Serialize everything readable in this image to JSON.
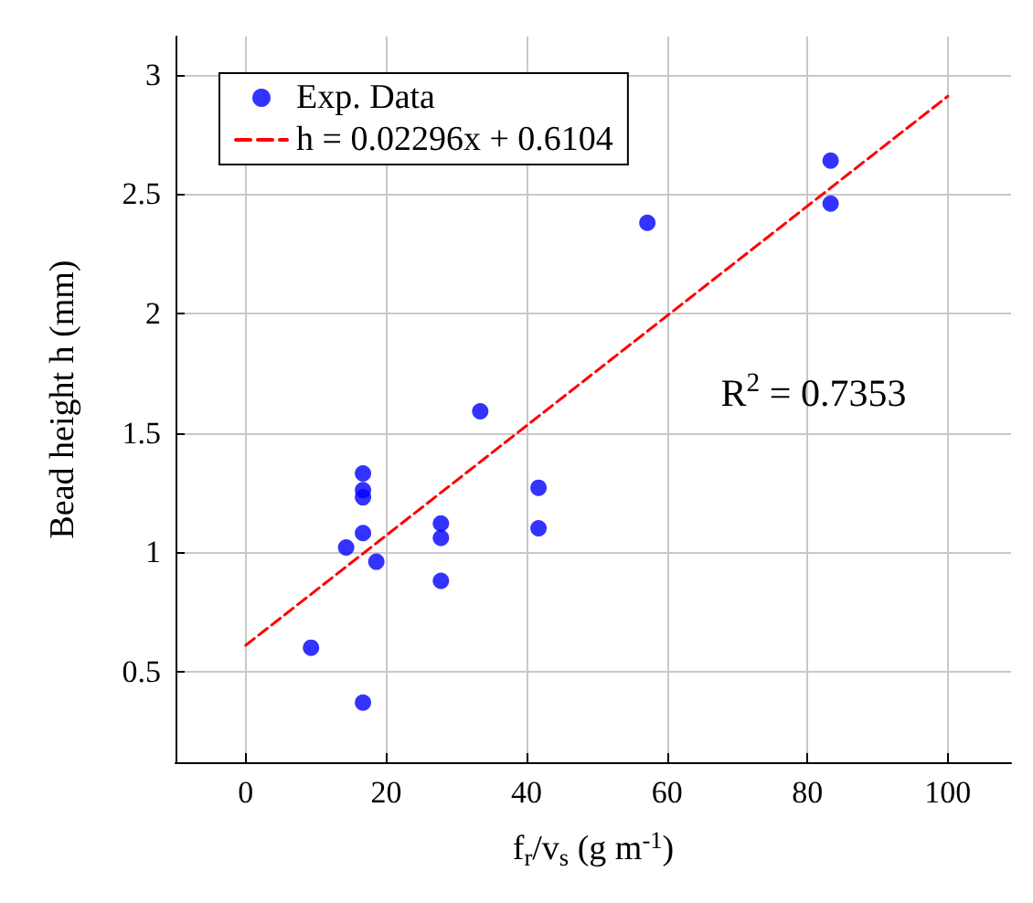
{
  "chart_data": {
    "type": "scatter",
    "xlabel": "f$_{r}$/v$_{s}$ (g m$^{-1}$)",
    "ylabel": "Bead height h (mm)",
    "xlim": [
      -10,
      109
    ],
    "xticks": [
      0,
      20,
      40,
      60,
      80,
      100
    ],
    "ylim": [
      0.12,
      3.16
    ],
    "yticks": [
      0.5,
      1,
      1.5,
      2,
      2.5,
      3
    ],
    "grid": true,
    "legend": "top left",
    "marker": "circle",
    "series": [
      {
        "name": "Exp. Data",
        "color": "#0000ff",
        "x": [
          9.3,
          16.7,
          14.3,
          16.7,
          18.6,
          16.7,
          16.7,
          16.7,
          27.8,
          27.8,
          27.8,
          33.4,
          41.7,
          41.7,
          57.2,
          83.3,
          83.3
        ],
        "values": [
          0.6,
          0.37,
          1.02,
          1.08,
          0.96,
          1.33,
          1.26,
          1.23,
          1.12,
          1.06,
          0.88,
          1.59,
          1.27,
          1.1,
          2.38,
          2.64,
          2.46
        ]
      },
      {
        "name": "h = 0.02296x + 0.6104",
        "type": "line",
        "color": "#ff0000",
        "line_style": "dashed",
        "marker": "none",
        "x": [
          0,
          100
        ],
        "values": [
          0.61,
          2.91
        ]
      }
    ],
    "annotations": [
      "R$^{2}$ = 0.7353"
    ]
  }
}
